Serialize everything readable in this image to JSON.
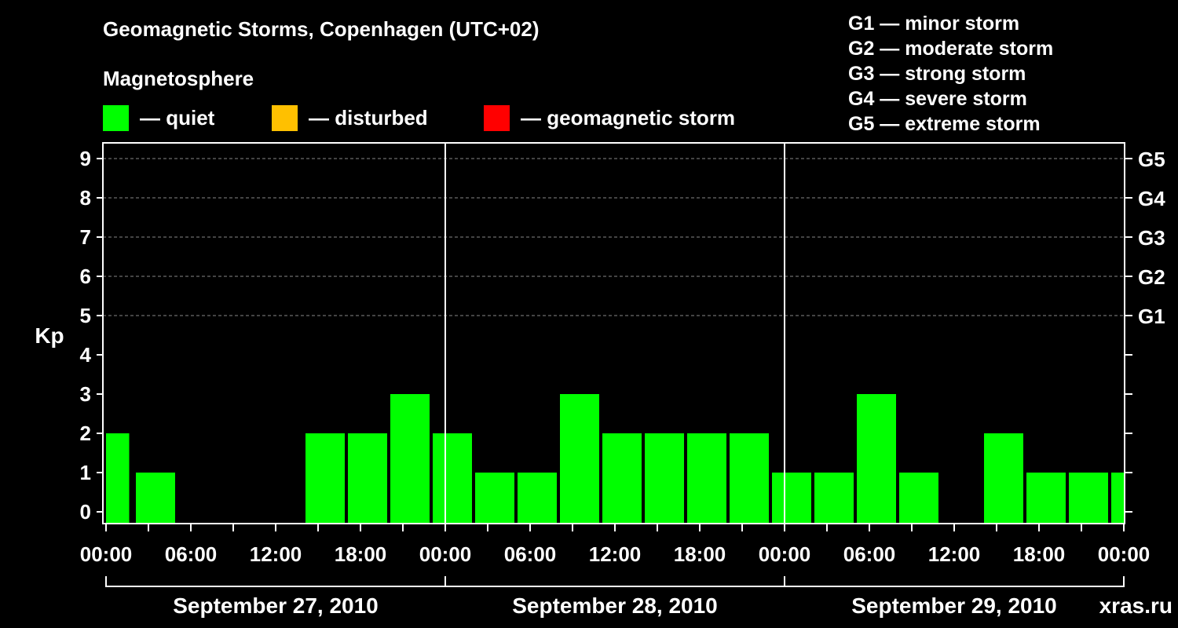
{
  "title": "Geomagnetic Storms, Copenhagen (UTC+02)",
  "magnetosphere": {
    "label": "Magnetosphere",
    "legend": [
      {
        "label": "— quiet",
        "color": "#00ff00"
      },
      {
        "label": "— disturbed",
        "color": "#ffc000"
      },
      {
        "label": "— geomagnetic storm",
        "color": "#ff0000"
      }
    ]
  },
  "storm_scale": [
    "G1 — minor storm",
    "G2 — moderate storm",
    "G3 — strong storm",
    "G4 — severe storm",
    "G5 — extreme storm"
  ],
  "watermark": "xras.ru",
  "chart_data": {
    "type": "bar",
    "title": "Geomagnetic Storms, Copenhagen (UTC+02)",
    "ylabel": "Kp",
    "ylim": [
      0,
      9
    ],
    "yticks": [
      "0",
      "1",
      "2",
      "3",
      "4",
      "5",
      "6",
      "7",
      "8",
      "9"
    ],
    "right_ticks": [
      {
        "kp": 5,
        "label": "G1"
      },
      {
        "kp": 6,
        "label": "G2"
      },
      {
        "kp": 7,
        "label": "G3"
      },
      {
        "kp": 8,
        "label": "G4"
      },
      {
        "kp": 9,
        "label": "G5"
      }
    ],
    "x_hours_range": [
      0,
      72
    ],
    "xtick_labels": [
      "00:00",
      "06:00",
      "12:00",
      "18:00",
      "00:00",
      "06:00",
      "12:00",
      "18:00",
      "00:00",
      "06:00",
      "12:00",
      "18:00",
      "00:00"
    ],
    "dates": [
      "September 27, 2010",
      "September 28, 2010",
      "September 29, 2010"
    ],
    "bars": [
      {
        "start": 0,
        "end": 1.75,
        "kp": 2
      },
      {
        "start": 2,
        "end": 5,
        "kp": 1
      },
      {
        "start": 14,
        "end": 17,
        "kp": 2
      },
      {
        "start": 17,
        "end": 20,
        "kp": 2
      },
      {
        "start": 20,
        "end": 23,
        "kp": 3
      },
      {
        "start": 23,
        "end": 26,
        "kp": 2
      },
      {
        "start": 26,
        "end": 29,
        "kp": 1
      },
      {
        "start": 29,
        "end": 32,
        "kp": 1
      },
      {
        "start": 32,
        "end": 35,
        "kp": 3
      },
      {
        "start": 35,
        "end": 38,
        "kp": 2
      },
      {
        "start": 38,
        "end": 41,
        "kp": 2
      },
      {
        "start": 41,
        "end": 44,
        "kp": 2
      },
      {
        "start": 44,
        "end": 47,
        "kp": 2
      },
      {
        "start": 47,
        "end": 50,
        "kp": 1
      },
      {
        "start": 50,
        "end": 53,
        "kp": 1
      },
      {
        "start": 53,
        "end": 56,
        "kp": 3
      },
      {
        "start": 56,
        "end": 59,
        "kp": 1
      },
      {
        "start": 62,
        "end": 65,
        "kp": 2
      },
      {
        "start": 65,
        "end": 68,
        "kp": 1
      },
      {
        "start": 68,
        "end": 71,
        "kp": 1
      },
      {
        "start": 71,
        "end": 72,
        "kp": 1
      }
    ]
  }
}
